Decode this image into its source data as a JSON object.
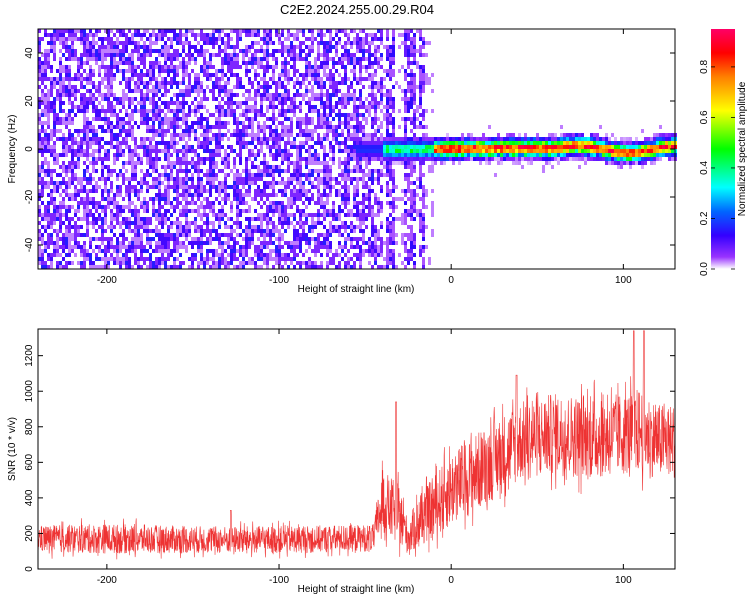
{
  "title": "C2E2.2024.255.00.29.R04",
  "chart_data": [
    {
      "type": "heatmap",
      "xlabel": "Height of straight line (km)",
      "ylabel": "Frequency (Hz)",
      "xlim": [
        -240,
        130
      ],
      "ylim": [
        -50,
        50
      ],
      "xticks": [
        -200,
        -100,
        0,
        100
      ],
      "yticks": [
        -40,
        -20,
        0,
        20,
        40
      ],
      "colorbar": {
        "label": "Normalized spectral amplitude",
        "range": [
          0,
          0.95
        ],
        "ticks": [
          0.0,
          0.2,
          0.4,
          0.6,
          0.8
        ],
        "colors": [
          "#ffffff",
          "#7f00ff",
          "#0000ff",
          "#00ffff",
          "#00ff00",
          "#ffff00",
          "#ff8000",
          "#ff0000",
          "#ff0080"
        ]
      },
      "regions": [
        {
          "x_range": [
            -240,
            -40
          ],
          "description_level": 0.15
        },
        {
          "x_range": [
            -40,
            130
          ],
          "center_freq_hz": 0,
          "peak_level": 0.9
        }
      ]
    },
    {
      "type": "line",
      "xlabel": "Height of straight line (km)",
      "ylabel": "SNR (10 * v/v)",
      "xlim": [
        -240,
        130
      ],
      "ylim": [
        0,
        1350
      ],
      "xticks": [
        -200,
        -100,
        0,
        100
      ],
      "yticks": [
        0,
        200,
        400,
        600,
        800,
        1000,
        1200
      ],
      "color": "#ee3333",
      "envelope": [
        {
          "x": -240,
          "mean": 170,
          "amp": 110
        },
        {
          "x": -200,
          "mean": 170,
          "amp": 120
        },
        {
          "x": -150,
          "mean": 165,
          "amp": 110
        },
        {
          "x": -100,
          "mean": 165,
          "amp": 110
        },
        {
          "x": -45,
          "mean": 175,
          "amp": 110
        },
        {
          "x": -40,
          "mean": 380,
          "amp": 260
        },
        {
          "x": -30,
          "mean": 300,
          "amp": 240
        },
        {
          "x": -25,
          "mean": 180,
          "amp": 140
        },
        {
          "x": -20,
          "mean": 250,
          "amp": 200
        },
        {
          "x": 0,
          "mean": 450,
          "amp": 300
        },
        {
          "x": 20,
          "mean": 580,
          "amp": 320
        },
        {
          "x": 40,
          "mean": 720,
          "amp": 320
        },
        {
          "x": 60,
          "mean": 760,
          "amp": 330
        },
        {
          "x": 80,
          "mean": 740,
          "amp": 340
        },
        {
          "x": 100,
          "mean": 760,
          "amp": 330
        },
        {
          "x": 110,
          "mean": 780,
          "amp": 350
        },
        {
          "x": 120,
          "mean": 720,
          "amp": 300
        },
        {
          "x": 130,
          "mean": 720,
          "amp": 300
        }
      ],
      "peaks": [
        {
          "x": -128,
          "y": 330
        },
        {
          "x": -32,
          "y": 940
        },
        {
          "x": 38,
          "y": 1090
        },
        {
          "x": 106,
          "y": 1340
        },
        {
          "x": 112,
          "y": 1340
        }
      ]
    }
  ]
}
